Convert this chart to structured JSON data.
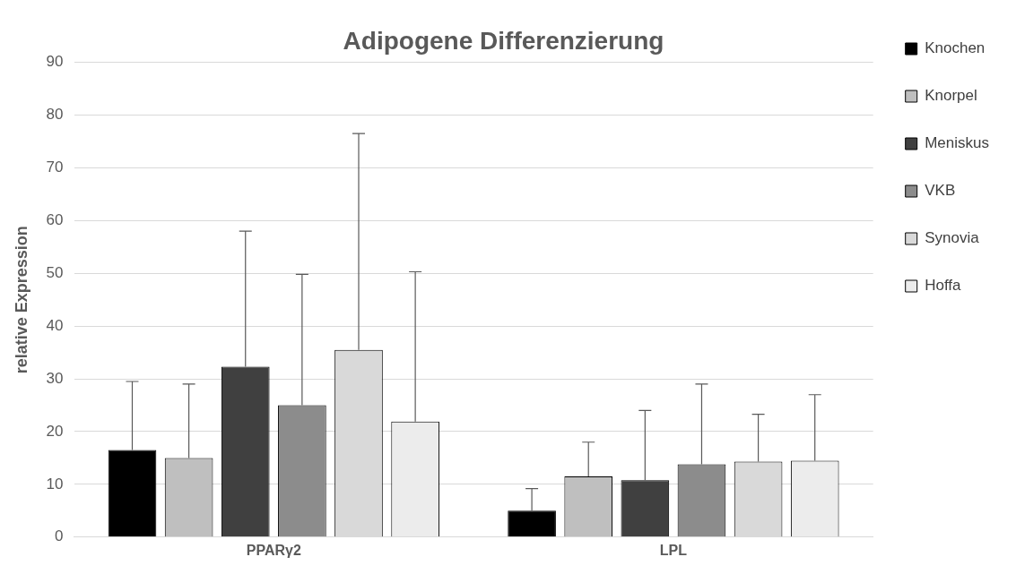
{
  "chart_data": {
    "type": "bar",
    "title": "Adipogene Differenzierung",
    "ylabel": "relative Expression",
    "categories": [
      "PPARγ2",
      "LPL"
    ],
    "series": [
      {
        "name": "Knochen",
        "color": "#000000",
        "values": [
          16.5,
          5
        ],
        "errors": [
          [
            16.5,
            29.5
          ],
          [
            5,
            9.2
          ]
        ]
      },
      {
        "name": "Knorpel",
        "color": "#bfbfbf",
        "values": [
          15,
          11.5
        ],
        "errors": [
          [
            15,
            29
          ],
          [
            11.5,
            18
          ]
        ]
      },
      {
        "name": "Meniskus",
        "color": "#404040",
        "values": [
          32.3,
          10.8
        ],
        "errors": [
          [
            32.3,
            58
          ],
          [
            10.8,
            24
          ]
        ]
      },
      {
        "name": "VKB",
        "color": "#8c8c8c",
        "values": [
          25,
          13.8
        ],
        "errors": [
          [
            25,
            49.8
          ],
          [
            13.8,
            29
          ]
        ]
      },
      {
        "name": "Synovia",
        "color": "#d9d9d9",
        "values": [
          35.5,
          14.3
        ],
        "errors": [
          [
            35.5,
            76.5
          ],
          [
            14.3,
            23.3
          ]
        ]
      },
      {
        "name": "Hoffa",
        "color": "#ececec",
        "values": [
          21.9,
          14.5
        ],
        "errors": [
          [
            21.9,
            50.3
          ],
          [
            14.5,
            27
          ]
        ]
      }
    ],
    "ylim": [
      0,
      90
    ],
    "yticks": [
      0,
      10,
      20,
      30,
      40,
      50,
      60,
      70,
      80,
      90
    ],
    "grid": "y",
    "legend": "right"
  }
}
